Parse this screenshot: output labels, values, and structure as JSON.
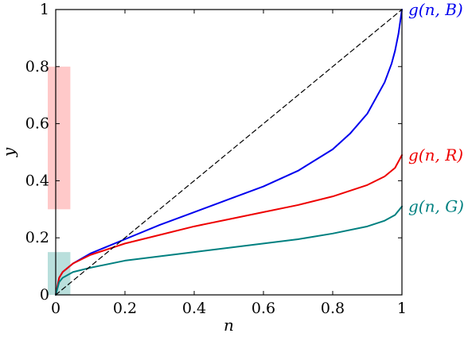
{
  "chart_data": {
    "type": "line",
    "title": "",
    "xlabel": "n",
    "ylabel": "y",
    "xlim": [
      0,
      1
    ],
    "ylim": [
      0,
      1
    ],
    "grid": false,
    "legend": "none",
    "xticks": [
      "0",
      "0.2",
      "0.4",
      "0.6",
      "0.8",
      "1"
    ],
    "yticks": [
      "0",
      "0.2",
      "0.4",
      "0.6",
      "0.8",
      "1"
    ],
    "bands": [
      {
        "x": [
          0,
          0.04
        ],
        "y": [
          0.3,
          0.8
        ],
        "color": "#ffc9c9"
      },
      {
        "x": [
          0,
          0.04
        ],
        "y": [
          0.0,
          0.15
        ],
        "color": "#b9dfdc"
      }
    ],
    "series": [
      {
        "name": "g(n, B)",
        "color": "#0000ee",
        "style": "solid",
        "x": [
          0,
          0.01,
          0.02,
          0.05,
          0.1,
          0.2,
          0.3,
          0.4,
          0.5,
          0.6,
          0.7,
          0.8,
          0.85,
          0.9,
          0.95,
          0.97,
          0.98,
          0.99,
          1.0
        ],
        "y": [
          0,
          0.06,
          0.08,
          0.11,
          0.145,
          0.195,
          0.245,
          0.29,
          0.335,
          0.38,
          0.435,
          0.51,
          0.565,
          0.635,
          0.745,
          0.81,
          0.855,
          0.915,
          1.0
        ]
      },
      {
        "name": "g(n, R)",
        "color": "#ee0000",
        "style": "solid",
        "x": [
          0,
          0.01,
          0.02,
          0.05,
          0.1,
          0.2,
          0.3,
          0.4,
          0.5,
          0.6,
          0.7,
          0.8,
          0.9,
          0.95,
          0.98,
          1.0
        ],
        "y": [
          0,
          0.06,
          0.08,
          0.11,
          0.14,
          0.18,
          0.21,
          0.24,
          0.265,
          0.29,
          0.315,
          0.345,
          0.385,
          0.415,
          0.445,
          0.49
        ]
      },
      {
        "name": "g(n, G)",
        "color": "#008080",
        "style": "solid",
        "x": [
          0,
          0.01,
          0.02,
          0.05,
          0.1,
          0.2,
          0.3,
          0.4,
          0.5,
          0.6,
          0.7,
          0.8,
          0.9,
          0.95,
          0.98,
          1.0
        ],
        "y": [
          0,
          0.045,
          0.06,
          0.08,
          0.095,
          0.12,
          0.135,
          0.15,
          0.165,
          0.18,
          0.195,
          0.215,
          0.24,
          0.26,
          0.28,
          0.31
        ]
      },
      {
        "name": "",
        "color": "#000000",
        "style": "dashed",
        "x": [
          0,
          1
        ],
        "y": [
          0,
          1
        ]
      }
    ]
  }
}
